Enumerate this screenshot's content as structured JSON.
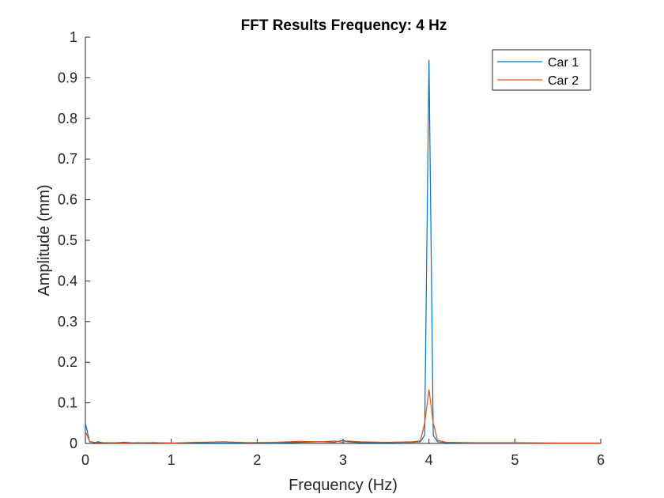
{
  "chart_data": {
    "type": "line",
    "title": "FFT Results Frequency: 4 Hz",
    "xlabel": "Frequency (Hz)",
    "ylabel": "Amplitude (mm)",
    "xlim": [
      0,
      6
    ],
    "ylim": [
      0,
      1
    ],
    "xticks": [
      "0",
      "1",
      "2",
      "3",
      "4",
      "5",
      "6"
    ],
    "yticks": [
      "0",
      "0.1",
      "0.2",
      "0.3",
      "0.4",
      "0.5",
      "0.6",
      "0.7",
      "0.8",
      "0.9",
      "1"
    ],
    "grid": false,
    "legend_position": "top-right",
    "series": [
      {
        "name": "Car 1",
        "color": "#0072BD",
        "x": [
          0,
          0.05,
          0.1,
          0.15,
          0.2,
          0.3,
          0.45,
          0.6,
          0.8,
          1.0,
          1.3,
          1.6,
          1.9,
          2.2,
          2.5,
          2.75,
          2.9,
          3.0,
          3.05,
          3.2,
          3.5,
          3.8,
          3.9,
          3.95,
          4.0,
          4.05,
          4.1,
          4.2,
          4.5,
          5.0,
          5.5,
          6.0
        ],
        "y": [
          0.05,
          0.004,
          0.002,
          0.004,
          0.002,
          0.001,
          0.003,
          0.001,
          0.002,
          0.001,
          0.002,
          0.001,
          0.002,
          0.001,
          0.003,
          0.004,
          0.003,
          0.008,
          0.004,
          0.002,
          0.002,
          0.003,
          0.004,
          0.02,
          0.944,
          0.02,
          0.004,
          0.002,
          0.001,
          0.001,
          0.001,
          0.001
        ]
      },
      {
        "name": "Car 2",
        "color": "#D95319",
        "x": [
          0,
          0.05,
          0.1,
          0.15,
          0.2,
          0.3,
          0.45,
          0.6,
          0.8,
          1.0,
          1.3,
          1.6,
          1.9,
          2.2,
          2.5,
          2.75,
          2.9,
          3.0,
          3.05,
          3.2,
          3.5,
          3.8,
          3.9,
          3.95,
          4.0,
          4.05,
          4.1,
          4.2,
          4.5,
          5.0,
          5.5,
          6.0
        ],
        "y": [
          0.03,
          0.005,
          0.003,
          0.002,
          0.002,
          0.002,
          0.001,
          0.002,
          0.002,
          0.001,
          0.003,
          0.004,
          0.002,
          0.003,
          0.005,
          0.004,
          0.006,
          0.003,
          0.006,
          0.004,
          0.003,
          0.004,
          0.006,
          0.05,
          0.133,
          0.05,
          0.008,
          0.003,
          0.002,
          0.002,
          0.001,
          0.001
        ]
      }
    ]
  }
}
